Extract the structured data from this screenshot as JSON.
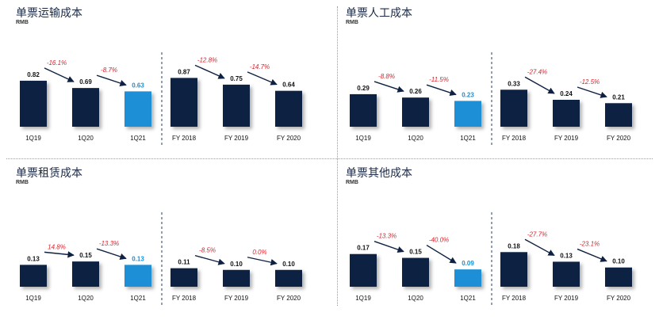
{
  "colors": {
    "dark": "#0f2142",
    "highlight": "#1a8fd6",
    "change": "#e0202a",
    "text": "#111111"
  },
  "chart_data": [
    {
      "type": "bar",
      "title": "单票运输成本",
      "subtitle": "RMB",
      "groups": [
        {
          "categories": [
            "1Q19",
            "1Q20",
            "1Q21"
          ],
          "values": [
            0.82,
            0.69,
            0.63
          ],
          "changes": [
            "-16.1%",
            "-8.7%"
          ]
        },
        {
          "categories": [
            "FY 2018",
            "FY 2019",
            "FY 2020"
          ],
          "values": [
            0.87,
            0.75,
            0.64
          ],
          "changes": [
            "-12.8%",
            "-14.7%"
          ]
        }
      ],
      "highlight": "1Q21",
      "ylim": [
        0,
        1.2
      ]
    },
    {
      "type": "bar",
      "title": "单票人工成本",
      "subtitle": "RMB",
      "groups": [
        {
          "categories": [
            "1Q19",
            "1Q20",
            "1Q21"
          ],
          "values": [
            0.29,
            0.26,
            0.23
          ],
          "changes": [
            "-8.8%",
            "-11.5%"
          ]
        },
        {
          "categories": [
            "FY 2018",
            "FY 2019",
            "FY 2020"
          ],
          "values": [
            0.33,
            0.24,
            0.21
          ],
          "changes": [
            "-27.4%",
            "-12.5%"
          ]
        }
      ],
      "highlight": "1Q21",
      "ylim": [
        0,
        0.6
      ]
    },
    {
      "type": "bar",
      "title": "单票租赁成本",
      "subtitle": "RMB",
      "groups": [
        {
          "categories": [
            "1Q19",
            "1Q20",
            "1Q21"
          ],
          "values": [
            0.13,
            0.15,
            0.13
          ],
          "changes": [
            "14.8%",
            "-13.3%"
          ]
        },
        {
          "categories": [
            "FY 2018",
            "FY 2019",
            "FY 2020"
          ],
          "values": [
            0.11,
            0.1,
            0.1
          ],
          "changes": [
            "-8.5%",
            "0.0%"
          ]
        }
      ],
      "highlight": "1Q21",
      "ylim": [
        0,
        0.4
      ]
    },
    {
      "type": "bar",
      "title": "单票其他成本",
      "subtitle": "RMB",
      "groups": [
        {
          "categories": [
            "1Q19",
            "1Q20",
            "1Q21"
          ],
          "values": [
            0.17,
            0.15,
            0.09
          ],
          "changes": [
            "-13.3%",
            "-40.0%"
          ]
        },
        {
          "categories": [
            "FY 2018",
            "FY 2019",
            "FY 2020"
          ],
          "values": [
            0.18,
            0.13,
            0.1
          ],
          "changes": [
            "-27.7%",
            "-23.1%"
          ]
        }
      ],
      "highlight": "1Q21",
      "ylim": [
        0,
        0.35
      ]
    }
  ]
}
